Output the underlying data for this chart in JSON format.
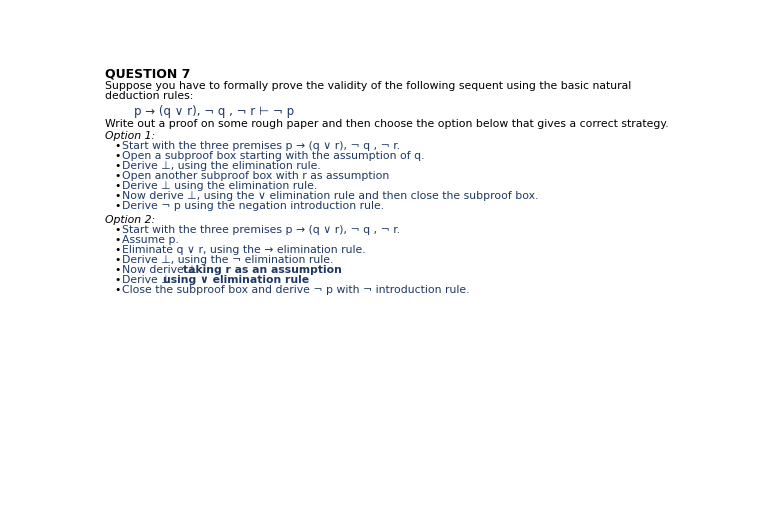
{
  "background_color": "#ffffff",
  "title": "QUESTION 7",
  "intro_line1": "Suppose you have to formally prove the validity of the following sequent using the basic natural",
  "intro_line2": "deduction rules:",
  "sequent": "p → (q ∨ r), ¬ q , ¬ r ⊢ ¬ p",
  "write_out": "Write out a proof on some rough paper and then choose the option below that gives a correct strategy.",
  "option1_label": "Option 1:",
  "option1_bullets": [
    "Start with the three premises p → (q ∨ r), ¬ q , ¬ r.",
    "Open a subproof box starting with the assumption of q.",
    "Derive ⊥, using the elimination rule.",
    "Open another subproof box with r as assumption",
    "Derive ⊥ using the elimination rule.",
    "Now derive ⊥, using the ∨ elimination rule and then close the subproof box.",
    "Derive ¬ p using the negation introduction rule."
  ],
  "option2_label": "Option 2:",
  "option2_bullets": [
    {
      "text": "Start with the three premises p → (q ∨ r), ¬ q , ¬ r.",
      "bold": false
    },
    {
      "text": "Assume p.",
      "bold": false
    },
    {
      "text": "Eliminate q ∨ r, using the → elimination rule.",
      "bold": false
    },
    {
      "text": "Derive ⊥, using the ¬ elimination rule.",
      "bold": false
    },
    {
      "text1": "Now derive ⊥ ",
      "text2": "taking r as an assumption",
      "bold": true,
      "text3": "."
    },
    {
      "text1": "Derive ⊥ ",
      "text2": "using ∨ elimination rule",
      "bold": true
    },
    {
      "text": "Close the subproof box and derive ¬ p with ¬ introduction rule.",
      "bold": false
    }
  ],
  "text_color": "#1f3864",
  "title_color": "#000000",
  "bullet_color": "#000000",
  "fs_title": 9,
  "fs_body": 7.8,
  "fs_sequent": 8.5
}
